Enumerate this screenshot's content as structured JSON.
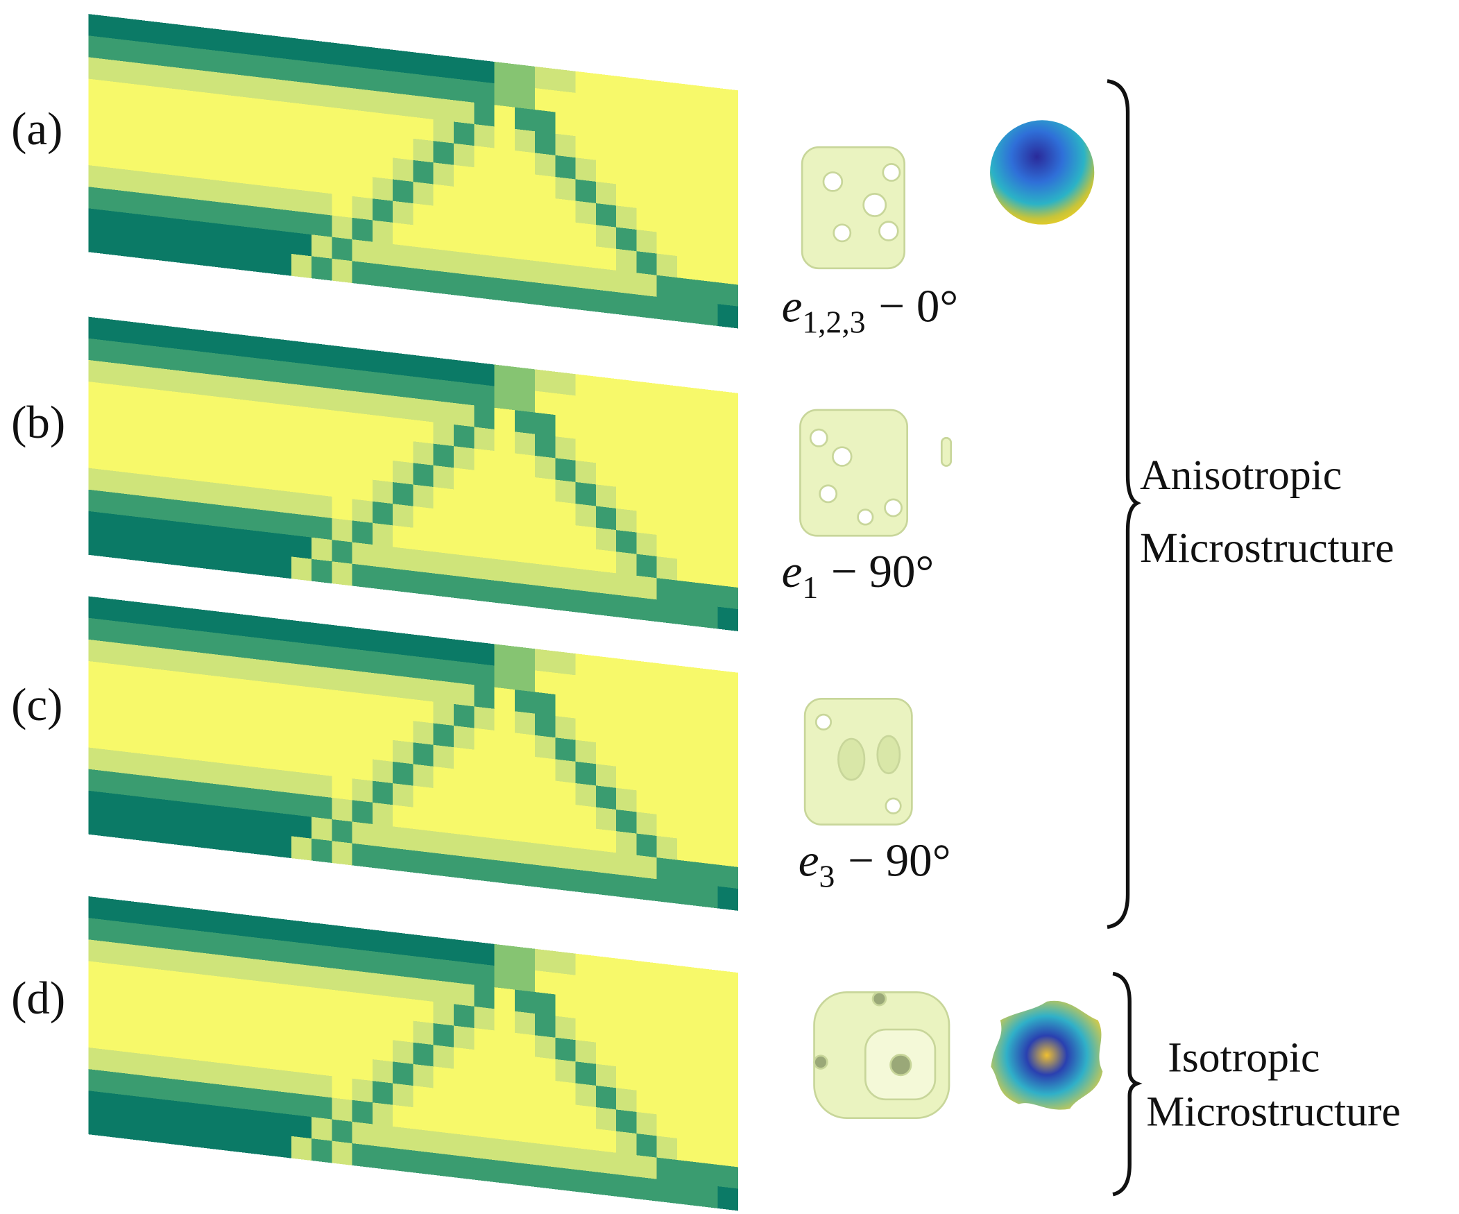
{
  "panels": [
    {
      "label": "(a)",
      "caption": {
        "symbol": "e",
        "subscript": "1,2,3",
        "rest": "− 0°"
      }
    },
    {
      "label": "(b)",
      "caption": {
        "symbol": "e",
        "subscript": "1",
        "rest": "− 90°"
      }
    },
    {
      "label": "(c)",
      "caption": {
        "symbol": "e",
        "subscript": "3",
        "rest": "− 90°"
      }
    },
    {
      "label": "(d)"
    }
  ],
  "groups": [
    {
      "lines": [
        "Anisotropic",
        "Microstructure"
      ]
    },
    {
      "lines": [
        "Isotropic",
        "Microstructure"
      ]
    }
  ]
}
